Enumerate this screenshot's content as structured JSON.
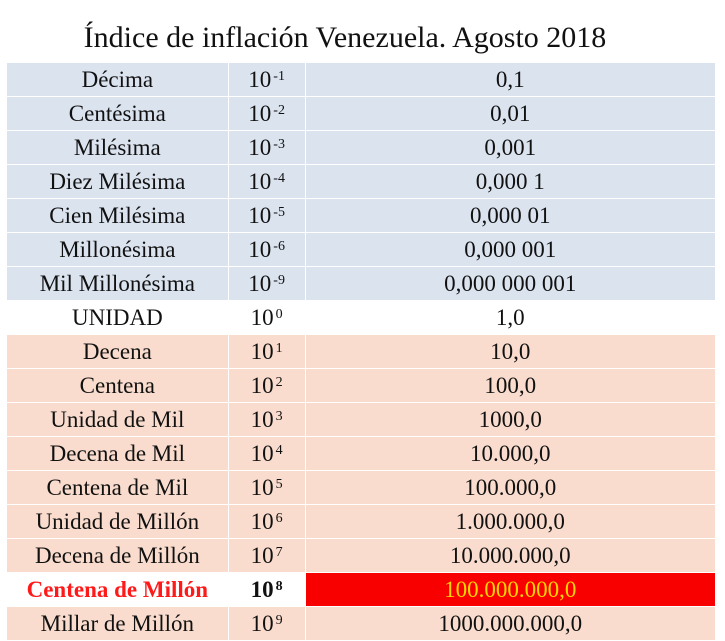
{
  "title": "Índice de inflación Venezuela. Agosto 2018",
  "rows": [
    {
      "name": "Décima",
      "base": "10",
      "exp": "-1",
      "value": "0,1",
      "group": "neg"
    },
    {
      "name": "Centésima",
      "base": "10",
      "exp": "-2",
      "value": "0,01",
      "group": "neg"
    },
    {
      "name": "Milésima",
      "base": "10",
      "exp": "-3",
      "value": "0,001",
      "group": "neg"
    },
    {
      "name": "Diez Milésima",
      "base": "10",
      "exp": "-4",
      "value": "0,000 1",
      "group": "neg"
    },
    {
      "name": "Cien Milésima",
      "base": "10",
      "exp": "-5",
      "value": "0,000 01",
      "group": "neg"
    },
    {
      "name": "Millonésima",
      "base": "10",
      "exp": "-6",
      "value": "0,000 001",
      "group": "neg"
    },
    {
      "name": "Mil Millonésima",
      "base": "10",
      "exp": "-9",
      "value": "0,000 000 001",
      "group": "neg"
    },
    {
      "name": "UNIDAD",
      "base": "10",
      "exp": "0",
      "value": "1,0",
      "group": "unit"
    },
    {
      "name": "Decena",
      "base": "10",
      "exp": "1",
      "value": "10,0",
      "group": "pos"
    },
    {
      "name": "Centena",
      "base": "10",
      "exp": "2",
      "value": "100,0",
      "group": "pos"
    },
    {
      "name": "Unidad de Mil",
      "base": "10",
      "exp": "3",
      "value": "1000,0",
      "group": "pos"
    },
    {
      "name": "Decena de Mil",
      "base": "10",
      "exp": "4",
      "value": "10.000,0",
      "group": "pos"
    },
    {
      "name": "Centena de Mil",
      "base": "10",
      "exp": "5",
      "value": "100.000,0",
      "group": "pos"
    },
    {
      "name": "Unidad de Millón",
      "base": "10",
      "exp": "6",
      "value": "1.000.000,0",
      "group": "pos"
    },
    {
      "name": "Decena de Millón",
      "base": "10",
      "exp": "7",
      "value": "10.000.000,0",
      "group": "pos"
    },
    {
      "name": "Centena de Millón",
      "base": "10",
      "exp": "8",
      "value": "100.000.000,0",
      "group": "hl"
    },
    {
      "name": "Millar de Millón",
      "base": "10",
      "exp": "9",
      "value": "1000.000.000,0",
      "group": "pos"
    }
  ],
  "colors": {
    "negative_rows": "#dbe3ef",
    "positive_rows": "#f9dccd",
    "highlight_fill": "#f80000",
    "highlight_text": "#ffd700",
    "highlight_label": "#ff1a1a"
  }
}
